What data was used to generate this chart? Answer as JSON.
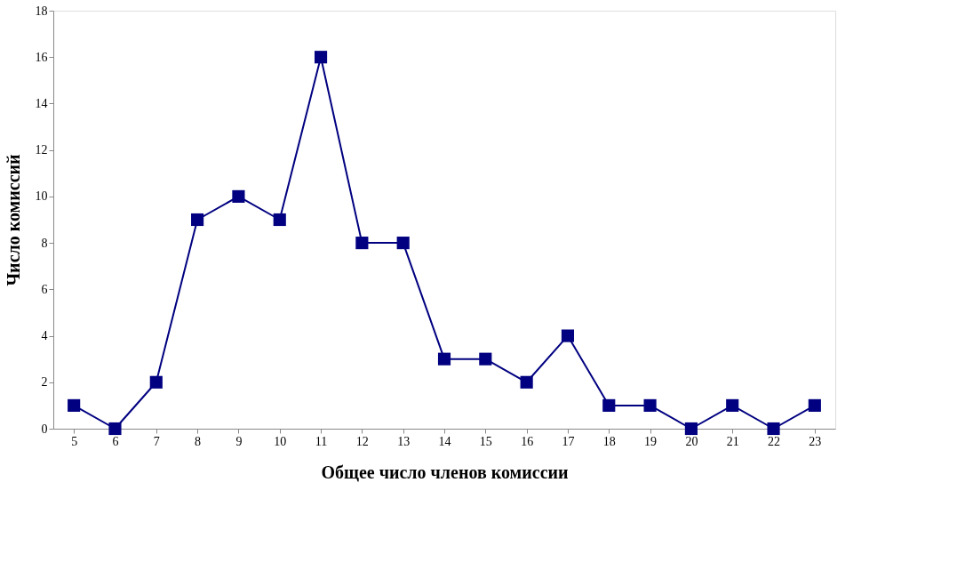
{
  "chart_data": {
    "type": "line",
    "xlabel": "Общее число членов комиссии",
    "ylabel": "Число комиссий",
    "categories": [
      "5",
      "6",
      "7",
      "8",
      "9",
      "10",
      "11",
      "12",
      "13",
      "14",
      "15",
      "16",
      "17",
      "18",
      "19",
      "20",
      "21",
      "22",
      "23"
    ],
    "series": [
      {
        "color": "#000080",
        "values": [
          1,
          0,
          2,
          9,
          10,
          9,
          16,
          8,
          8,
          3,
          3,
          2,
          4,
          1,
          1,
          0,
          1,
          0,
          1
        ]
      }
    ],
    "ylim": [
      0,
      18
    ],
    "yticks": [
      0,
      2,
      4,
      6,
      8,
      10,
      12,
      14,
      16,
      18
    ],
    "grid": false,
    "marker": "square",
    "line_style": "solid"
  }
}
